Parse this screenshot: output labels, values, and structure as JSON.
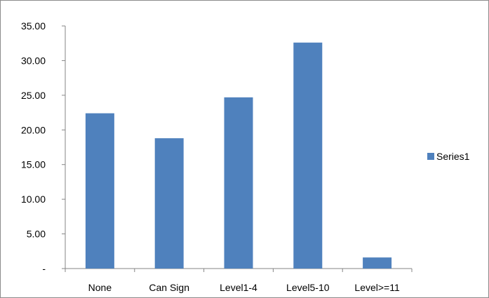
{
  "chart_data": {
    "type": "bar",
    "categories": [
      "None",
      "Can Sign",
      "Level1-4",
      "Level5-10",
      "Level>=11"
    ],
    "series": [
      {
        "name": "Series1",
        "values": [
          22.4,
          18.8,
          24.7,
          32.6,
          1.6
        ]
      }
    ],
    "y_tick_labels": [
      "-",
      "5.00",
      "10.00",
      "15.00",
      "20.00",
      "25.00",
      "30.00",
      "35.00"
    ],
    "ylim": [
      0,
      35
    ],
    "grid": false,
    "legend_position": "right",
    "colors": {
      "bar": "#4f81bd",
      "axis": "#868686"
    }
  }
}
